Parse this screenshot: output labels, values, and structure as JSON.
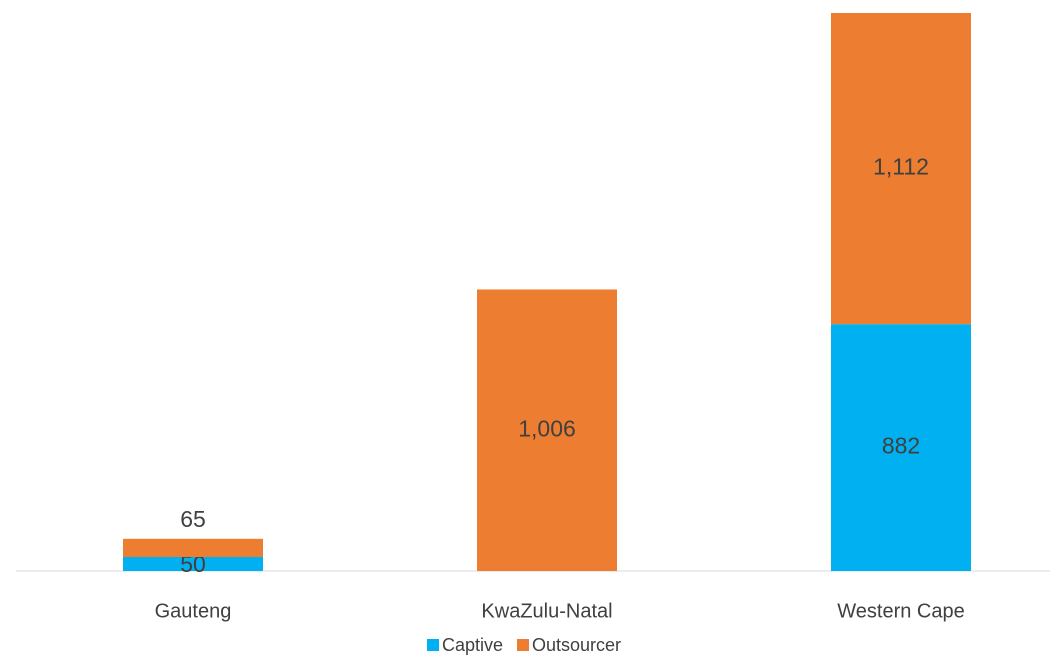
{
  "chart_data": {
    "type": "stacked_bar",
    "categories": [
      "Gauteng",
      "KwaZulu-Natal",
      "Western Cape"
    ],
    "series": [
      {
        "name": "Captive",
        "color": "#00b0f0",
        "values": [
          50,
          null,
          882
        ]
      },
      {
        "name": "Outsourcer",
        "color": "#ed7d31",
        "values": [
          65,
          1006,
          1112
        ],
        "value_labels": [
          "65",
          "1,006",
          "1,112"
        ]
      }
    ],
    "legend": "bottom"
  }
}
